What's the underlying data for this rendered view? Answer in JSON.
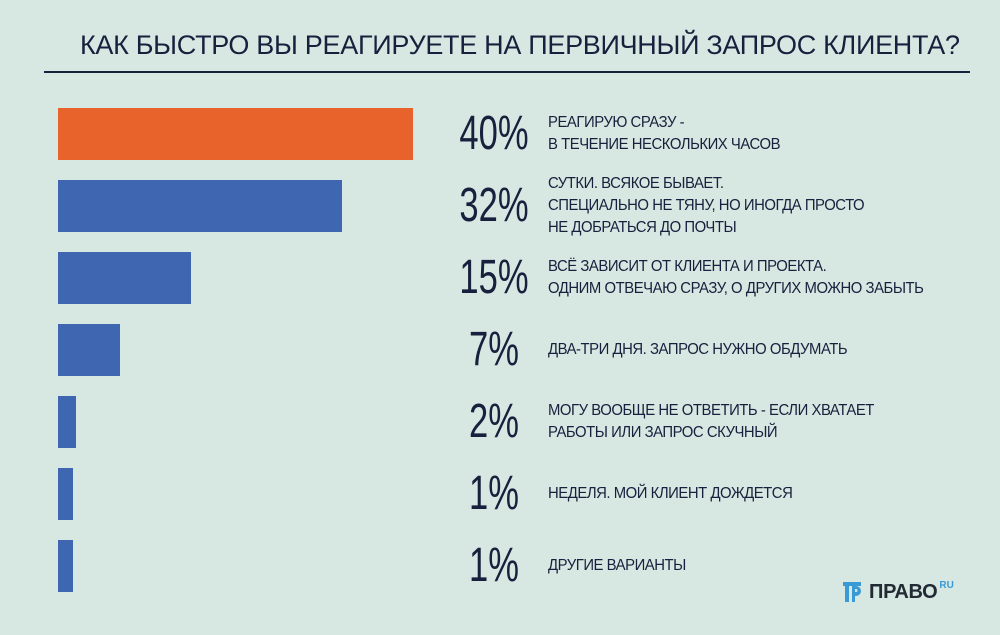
{
  "chart_data": {
    "type": "bar",
    "orientation": "horizontal",
    "title": "КАК БЫСТРО ВЫ РЕАГИРУЕТЕ НА ПЕРВИЧНЫЙ ЗАПРОС КЛИЕНТА?",
    "value_labels": [
      "40%",
      "32%",
      "15%",
      "7%",
      "2%",
      "1%",
      "1%"
    ],
    "categories": [
      "РЕАГИРУЮ СРАЗУ -\nВ ТЕЧЕНИЕ НЕСКОЛЬКИХ ЧАСОВ",
      "СУТКИ. ВСЯКОЕ БЫВАЕТ.\nСПЕЦИАЛЬНО НЕ ТЯНУ, НО ИНОГДА ПРОСТО\nНЕ ДОБРАТЬСЯ ДО ПОЧТЫ",
      "ВСЁ ЗАВИСИТ ОТ КЛИЕНТА И ПРОЕКТА.\nОДНИМ ОТВЕЧАЮ СРАЗУ, О ДРУГИХ МОЖНО ЗАБЫТЬ",
      "ДВА-ТРИ ДНЯ. ЗАПРОС НУЖНО ОБДУМАТЬ",
      "МОГУ ВООБЩЕ НЕ ОТВЕТИТЬ - ЕСЛИ ХВАТАЕТ\nРАБОТЫ ИЛИ ЗАПРОС СКУЧНЫЙ",
      "НЕДЕЛЯ. МОЙ КЛИЕНТ ДОЖДЕТСЯ",
      "ДРУГИЕ ВАРИАНТЫ"
    ],
    "values": [
      40,
      32,
      15,
      7,
      2,
      1,
      1
    ],
    "xlim": [
      0,
      40
    ],
    "grid": false,
    "colors": {
      "highlight": "#e8632b",
      "default": "#3f67b1"
    },
    "highlight_index": 0
  },
  "logo": {
    "text": "ПРАВО",
    "suffix": "RU"
  },
  "colors": {
    "background": "#d7e8e2",
    "text": "#17203d"
  }
}
